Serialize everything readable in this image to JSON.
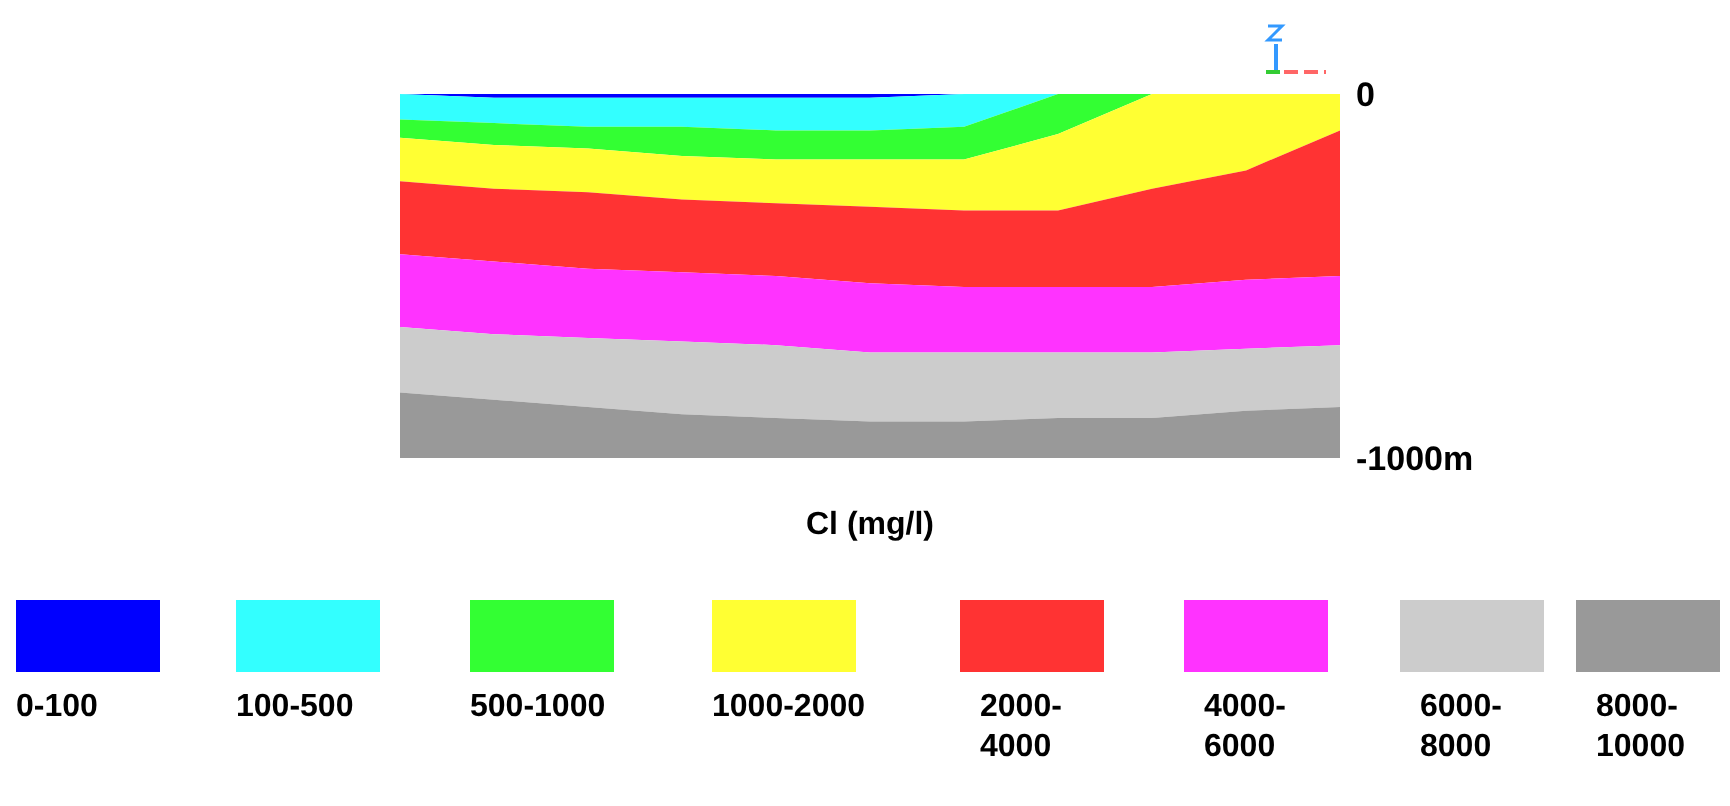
{
  "chart_data": {
    "type": "area",
    "stacked": true,
    "xlabel": "Cl (mg/l)",
    "legend": "bottom",
    "tick_labels": "y",
    "categories": [
      null,
      null,
      null,
      null,
      null,
      null,
      null,
      null,
      null,
      null,
      null
    ],
    "ylim": [
      -1000,
      0
    ],
    "yticks": [
      {
        "value": 0,
        "label": "0"
      },
      {
        "value": -1000,
        "label": "-1000m"
      }
    ],
    "series": [
      {
        "name": "0-100",
        "color": "#0000ff",
        "values": [
          0,
          -10,
          -10,
          -10,
          -10,
          -10,
          0,
          0,
          0,
          0,
          0
        ]
      },
      {
        "name": "100-500",
        "color": "#33ffff",
        "values": [
          -70,
          -70,
          -80,
          -80,
          -90,
          -90,
          -90,
          0,
          0,
          0,
          0
        ]
      },
      {
        "name": "500-1000",
        "color": "#33ff33",
        "values": [
          -50,
          -60,
          -60,
          -80,
          -80,
          -80,
          -90,
          -110,
          0,
          0,
          0
        ]
      },
      {
        "name": "1000-2000",
        "color": "#ffff33",
        "values": [
          -120,
          -120,
          -120,
          -120,
          -120,
          -130,
          -140,
          -210,
          -260,
          -210,
          -100
        ]
      },
      {
        "name": "2000-4000",
        "color": "#ff3333",
        "values": [
          -200,
          -200,
          -210,
          -200,
          -200,
          -210,
          -210,
          -210,
          -270,
          -300,
          -400
        ]
      },
      {
        "name": "4000-6000",
        "color": "#ff33ff",
        "values": [
          -200,
          -200,
          -190,
          -190,
          -190,
          -190,
          -180,
          -180,
          -180,
          -190,
          -190
        ]
      },
      {
        "name": "6000-8000",
        "color": "#cccccc",
        "values": [
          -180,
          -180,
          -190,
          -200,
          -200,
          -190,
          -190,
          -180,
          -180,
          -170,
          -170
        ]
      },
      {
        "name": "8000-10000",
        "color": "#999999",
        "values": [
          -180,
          -160,
          -140,
          -120,
          -110,
          -100,
          -100,
          -110,
          -110,
          -130,
          -140
        ]
      }
    ]
  }
}
